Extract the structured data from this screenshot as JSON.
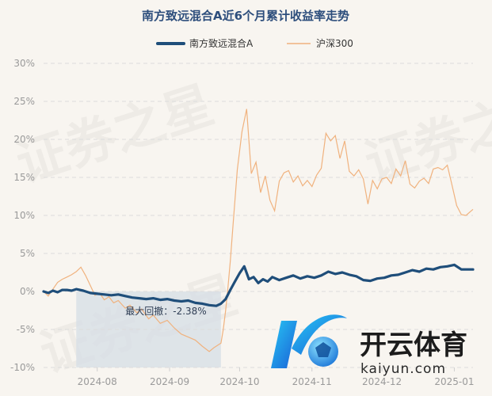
{
  "chart_data": {
    "type": "line",
    "title": "南方致远混合A近6个月累计收益率走势",
    "y_unit": "%",
    "ylim": [
      -10,
      30
    ],
    "y_ticks": [
      {
        "value": 30,
        "label": "30%"
      },
      {
        "value": 25,
        "label": "25%"
      },
      {
        "value": 20,
        "label": "20%"
      },
      {
        "value": 15,
        "label": "15%"
      },
      {
        "value": 10,
        "label": "10%"
      },
      {
        "value": 5,
        "label": "5%"
      },
      {
        "value": 0,
        "label": "0%"
      },
      {
        "value": -5,
        "label": "-5%"
      },
      {
        "value": -10,
        "label": "-10%"
      }
    ],
    "xlim": [
      "2024-07-09",
      "2025-01-09"
    ],
    "x_ticks": [
      {
        "date": "2024-08-01",
        "label": "2024-08"
      },
      {
        "date": "2024-09-01",
        "label": "2024-09"
      },
      {
        "date": "2024-10-01",
        "label": "2024-10"
      },
      {
        "date": "2024-11-01",
        "label": "2024-11"
      },
      {
        "date": "2024-12-01",
        "label": "2024-12"
      },
      {
        "date": "2025-01-01",
        "label": "2025-01"
      }
    ],
    "grid": true,
    "legend_position": "top-center",
    "drawdown": {
      "label": "最大回撤：-2.38%",
      "start": "2024-07-23",
      "end": "2024-09-23"
    },
    "series": [
      {
        "name": "南方致远混合A",
        "color": "#1f4e7a",
        "points": [
          [
            "2024-07-09",
            0.0
          ],
          [
            "2024-07-11",
            -0.2
          ],
          [
            "2024-07-13",
            0.1
          ],
          [
            "2024-07-15",
            -0.1
          ],
          [
            "2024-07-17",
            0.2
          ],
          [
            "2024-07-19",
            0.2
          ],
          [
            "2024-07-21",
            0.1
          ],
          [
            "2024-07-23",
            0.3
          ],
          [
            "2024-07-26",
            0.1
          ],
          [
            "2024-07-29",
            -0.2
          ],
          [
            "2024-08-01",
            -0.3
          ],
          [
            "2024-08-04",
            -0.4
          ],
          [
            "2024-08-07",
            -0.5
          ],
          [
            "2024-08-10",
            -0.4
          ],
          [
            "2024-08-13",
            -0.6
          ],
          [
            "2024-08-16",
            -0.8
          ],
          [
            "2024-08-19",
            -0.9
          ],
          [
            "2024-08-22",
            -1.0
          ],
          [
            "2024-08-25",
            -0.9
          ],
          [
            "2024-08-28",
            -1.1
          ],
          [
            "2024-08-31",
            -1.0
          ],
          [
            "2024-09-03",
            -1.2
          ],
          [
            "2024-09-06",
            -1.3
          ],
          [
            "2024-09-09",
            -1.2
          ],
          [
            "2024-09-12",
            -1.5
          ],
          [
            "2024-09-15",
            -1.6
          ],
          [
            "2024-09-18",
            -1.8
          ],
          [
            "2024-09-21",
            -1.9
          ],
          [
            "2024-09-23",
            -1.6
          ],
          [
            "2024-09-25",
            -1.0
          ],
          [
            "2024-09-27",
            0.2
          ],
          [
            "2024-09-29",
            1.3
          ],
          [
            "2024-10-01",
            2.4
          ],
          [
            "2024-10-03",
            3.3
          ],
          [
            "2024-10-05",
            1.6
          ],
          [
            "2024-10-07",
            1.9
          ],
          [
            "2024-10-09",
            1.1
          ],
          [
            "2024-10-11",
            1.6
          ],
          [
            "2024-10-13",
            1.3
          ],
          [
            "2024-10-15",
            1.9
          ],
          [
            "2024-10-18",
            1.5
          ],
          [
            "2024-10-21",
            1.8
          ],
          [
            "2024-10-24",
            2.1
          ],
          [
            "2024-10-27",
            1.7
          ],
          [
            "2024-10-30",
            2.0
          ],
          [
            "2024-11-02",
            1.8
          ],
          [
            "2024-11-05",
            2.1
          ],
          [
            "2024-11-08",
            2.6
          ],
          [
            "2024-11-11",
            2.3
          ],
          [
            "2024-11-14",
            2.5
          ],
          [
            "2024-11-17",
            2.2
          ],
          [
            "2024-11-20",
            2.0
          ],
          [
            "2024-11-23",
            1.5
          ],
          [
            "2024-11-26",
            1.4
          ],
          [
            "2024-11-29",
            1.7
          ],
          [
            "2024-12-02",
            1.8
          ],
          [
            "2024-12-05",
            2.1
          ],
          [
            "2024-12-08",
            2.2
          ],
          [
            "2024-12-11",
            2.5
          ],
          [
            "2024-12-14",
            2.8
          ],
          [
            "2024-12-17",
            2.6
          ],
          [
            "2024-12-20",
            3.0
          ],
          [
            "2024-12-23",
            2.9
          ],
          [
            "2024-12-26",
            3.2
          ],
          [
            "2024-12-29",
            3.3
          ],
          [
            "2025-01-01",
            3.5
          ],
          [
            "2025-01-04",
            2.9
          ],
          [
            "2025-01-07",
            2.9
          ],
          [
            "2025-01-09",
            2.9
          ]
        ]
      },
      {
        "name": "沪深300",
        "color": "#f0b27e",
        "points": [
          [
            "2024-07-09",
            0.0
          ],
          [
            "2024-07-11",
            -0.6
          ],
          [
            "2024-07-13",
            0.3
          ],
          [
            "2024-07-15",
            1.2
          ],
          [
            "2024-07-17",
            1.6
          ],
          [
            "2024-07-19",
            1.9
          ],
          [
            "2024-07-21",
            2.2
          ],
          [
            "2024-07-23",
            2.6
          ],
          [
            "2024-07-25",
            3.2
          ],
          [
            "2024-07-27",
            2.1
          ],
          [
            "2024-07-29",
            0.8
          ],
          [
            "2024-07-31",
            -0.5
          ],
          [
            "2024-08-02",
            -0.2
          ],
          [
            "2024-08-04",
            -1.1
          ],
          [
            "2024-08-06",
            -0.7
          ],
          [
            "2024-08-08",
            -1.5
          ],
          [
            "2024-08-10",
            -1.2
          ],
          [
            "2024-08-13",
            -2.2
          ],
          [
            "2024-08-15",
            -1.8
          ],
          [
            "2024-08-18",
            -2.8
          ],
          [
            "2024-08-20",
            -2.3
          ],
          [
            "2024-08-23",
            -3.6
          ],
          [
            "2024-08-25",
            -3.1
          ],
          [
            "2024-08-28",
            -4.2
          ],
          [
            "2024-08-31",
            -3.8
          ],
          [
            "2024-09-03",
            -4.8
          ],
          [
            "2024-09-06",
            -5.6
          ],
          [
            "2024-09-09",
            -6.0
          ],
          [
            "2024-09-12",
            -6.4
          ],
          [
            "2024-09-15",
            -7.2
          ],
          [
            "2024-09-18",
            -7.9
          ],
          [
            "2024-09-20",
            -7.4
          ],
          [
            "2024-09-23",
            -6.8
          ],
          [
            "2024-09-24",
            -5.0
          ],
          [
            "2024-09-25",
            -2.5
          ],
          [
            "2024-09-26",
            0.5
          ],
          [
            "2024-09-27",
            4.0
          ],
          [
            "2024-09-28",
            8.0
          ],
          [
            "2024-09-30",
            16.0
          ],
          [
            "2024-10-02",
            21.0
          ],
          [
            "2024-10-04",
            24.0
          ],
          [
            "2024-10-06",
            15.5
          ],
          [
            "2024-10-08",
            17.0
          ],
          [
            "2024-10-10",
            13.0
          ],
          [
            "2024-10-12",
            15.2
          ],
          [
            "2024-10-14",
            12.0
          ],
          [
            "2024-10-16",
            10.6
          ],
          [
            "2024-10-18",
            14.5
          ],
          [
            "2024-10-20",
            15.6
          ],
          [
            "2024-10-22",
            15.9
          ],
          [
            "2024-10-24",
            14.4
          ],
          [
            "2024-10-26",
            15.2
          ],
          [
            "2024-10-28",
            13.9
          ],
          [
            "2024-10-30",
            14.6
          ],
          [
            "2024-11-01",
            13.8
          ],
          [
            "2024-11-03",
            15.3
          ],
          [
            "2024-11-05",
            16.2
          ],
          [
            "2024-11-07",
            20.8
          ],
          [
            "2024-11-09",
            19.8
          ],
          [
            "2024-11-11",
            20.5
          ],
          [
            "2024-11-13",
            17.5
          ],
          [
            "2024-11-15",
            19.8
          ],
          [
            "2024-11-17",
            15.8
          ],
          [
            "2024-11-19",
            15.2
          ],
          [
            "2024-11-21",
            16.0
          ],
          [
            "2024-11-23",
            14.8
          ],
          [
            "2024-11-25",
            11.5
          ],
          [
            "2024-11-27",
            14.6
          ],
          [
            "2024-11-29",
            13.5
          ],
          [
            "2024-12-01",
            14.8
          ],
          [
            "2024-12-03",
            15.0
          ],
          [
            "2024-12-05",
            14.2
          ],
          [
            "2024-12-07",
            16.1
          ],
          [
            "2024-12-09",
            15.2
          ],
          [
            "2024-12-11",
            17.2
          ],
          [
            "2024-12-13",
            14.1
          ],
          [
            "2024-12-15",
            13.6
          ],
          [
            "2024-12-17",
            14.5
          ],
          [
            "2024-12-19",
            14.9
          ],
          [
            "2024-12-21",
            14.2
          ],
          [
            "2024-12-23",
            16.1
          ],
          [
            "2024-12-25",
            16.3
          ],
          [
            "2024-12-27",
            16.0
          ],
          [
            "2024-12-29",
            16.6
          ],
          [
            "2024-12-31",
            14.0
          ],
          [
            "2025-01-02",
            11.3
          ],
          [
            "2025-01-04",
            10.1
          ],
          [
            "2025-01-06",
            10.0
          ],
          [
            "2025-01-09",
            10.8
          ]
        ]
      }
    ]
  },
  "watermark": {
    "text": "证券之星"
  },
  "logo": {
    "brand_cn": "开云体育",
    "brand_en": "kaiyun.com"
  }
}
